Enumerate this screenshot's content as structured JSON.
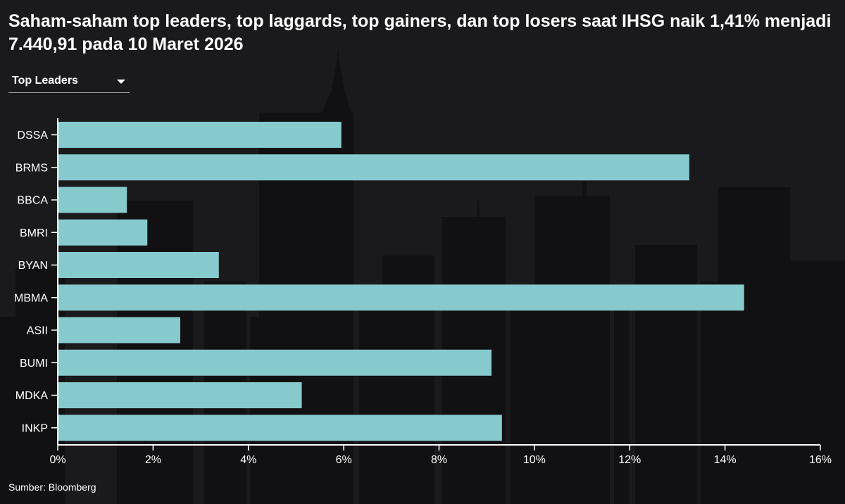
{
  "title": "Saham-saham top leaders, top laggards, top gainers, dan top losers saat IHSG naik 1,41% menjadi 7.440,91 pada 10 Maret 2026",
  "dropdown": {
    "selected": "Top Leaders"
  },
  "source": "Sumber: Bloomberg",
  "colors": {
    "bar": "#8fd8db",
    "background": "#1a1a1c",
    "axis": "#ffffff"
  },
  "chart_data": {
    "type": "bar",
    "orientation": "horizontal",
    "categories": [
      "DSSA",
      "BRMS",
      "BBCA",
      "BMRI",
      "BYAN",
      "MBMA",
      "ASII",
      "BUMI",
      "MDKA",
      "INKP"
    ],
    "values": [
      5.95,
      13.25,
      1.45,
      1.88,
      3.38,
      14.4,
      2.57,
      9.1,
      5.12,
      9.32
    ],
    "xlim": [
      0,
      16
    ],
    "xticks": [
      0,
      2,
      4,
      6,
      8,
      10,
      12,
      14,
      16
    ],
    "tick_labels": [
      "0%",
      "2%",
      "4%",
      "6%",
      "8%",
      "10%",
      "12%",
      "14%",
      "16%"
    ],
    "xlabel": "",
    "ylabel": "",
    "grid": false
  }
}
